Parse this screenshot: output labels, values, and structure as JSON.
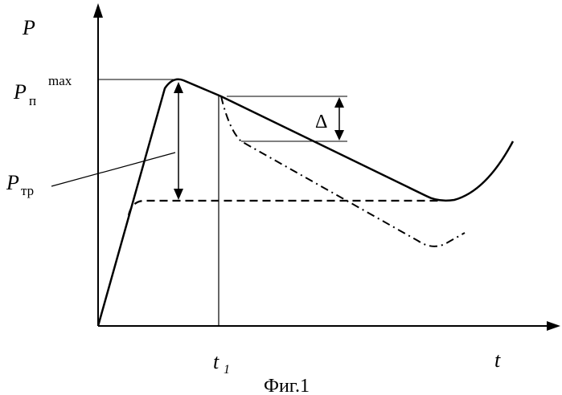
{
  "labels": {
    "p_axis": "P",
    "t_axis": "t",
    "p_max_base": "P",
    "p_max_sub": "п",
    "p_max_sup": "max",
    "p_tr_base": "P",
    "p_tr_sub": "тр",
    "delta": "Δ",
    "t1_base": "t",
    "t1_sub": "1",
    "caption": "Фиг.1"
  }
}
